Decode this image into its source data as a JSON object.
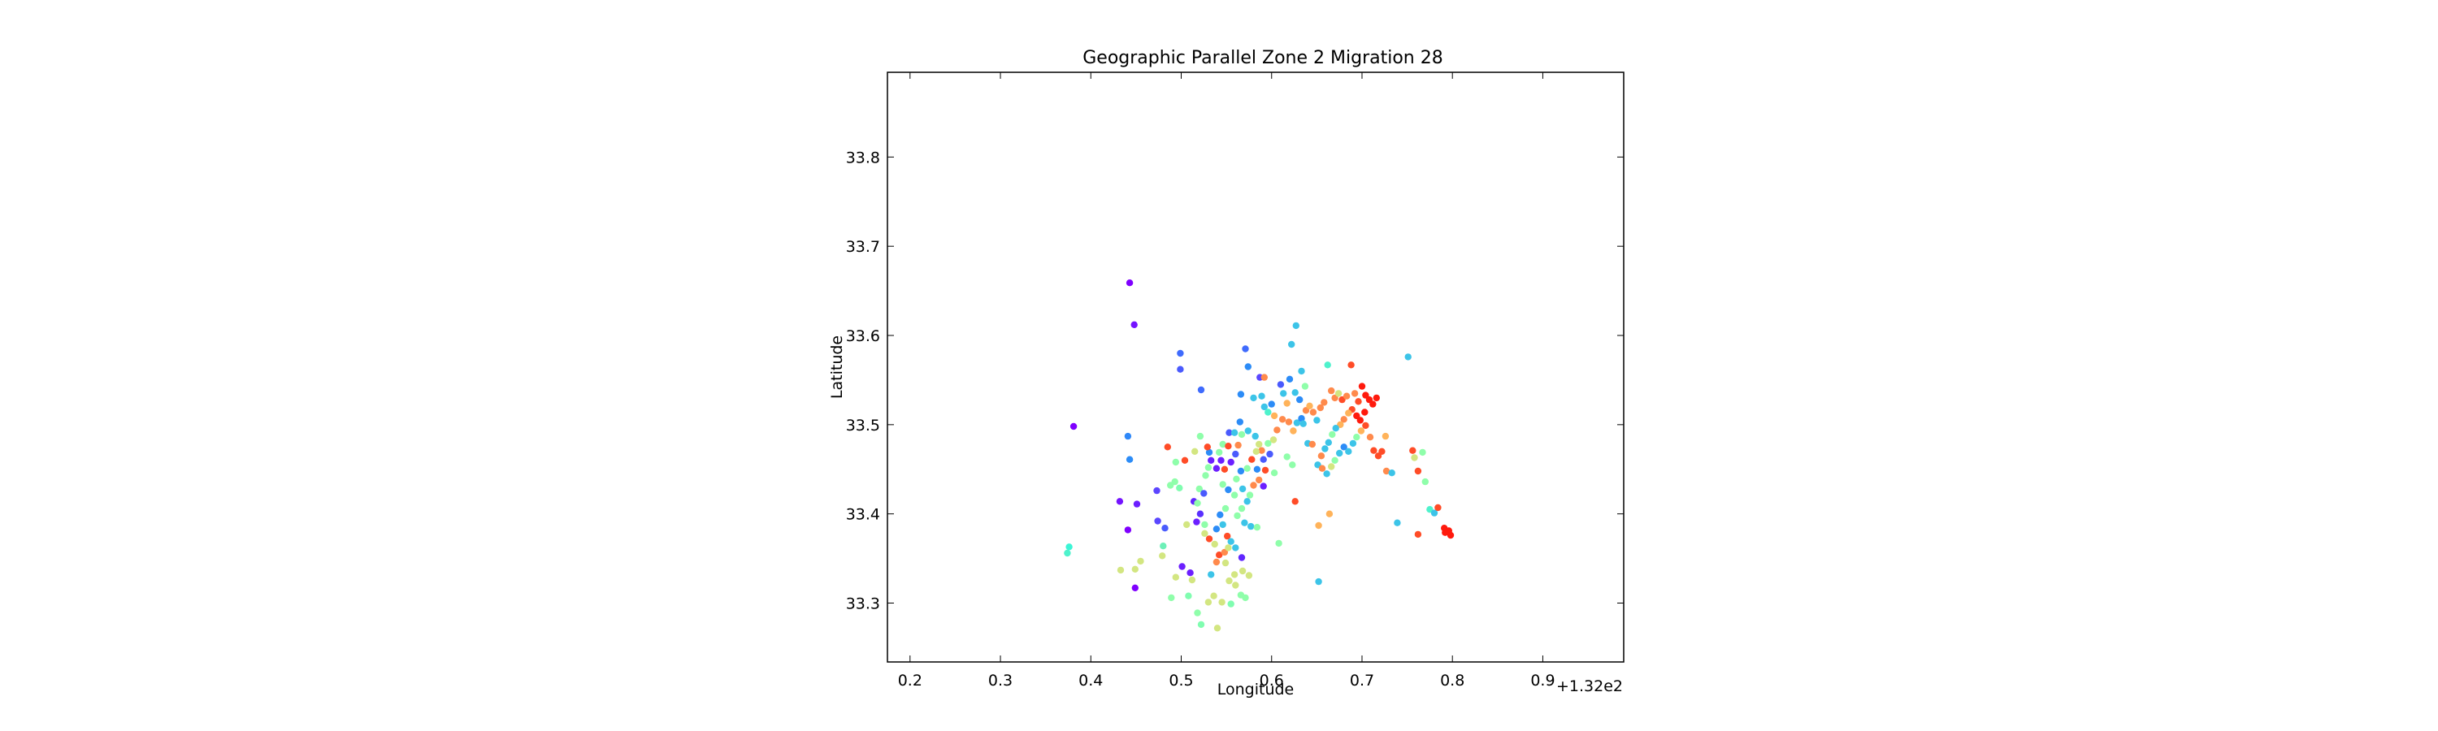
{
  "chart_data": {
    "type": "scatter",
    "title": "Geographic Parallel Zone 2 Migration 28",
    "xlabel": "Longitude",
    "ylabel": "Latitude",
    "x_offset_label": "+1.32e2",
    "xlim": [
      132.175,
      132.9895
    ],
    "ylim": [
      33.234,
      33.895
    ],
    "xticks": [
      132.2,
      132.3,
      132.4,
      132.5,
      132.6,
      132.7,
      132.8,
      132.9
    ],
    "xtick_labels": [
      "0.2",
      "0.3",
      "0.4",
      "0.5",
      "0.6",
      "0.7",
      "0.8",
      "0.9"
    ],
    "yticks": [
      33.3,
      33.4,
      33.5,
      33.6,
      33.7,
      33.8
    ],
    "ytick_labels": [
      "33.3",
      "33.4",
      "33.5",
      "33.6",
      "33.7",
      "33.8"
    ],
    "grid": false,
    "legend": "none",
    "colormap": "rainbow",
    "points": [
      {
        "x": 132.443,
        "y": 33.659,
        "c": "#7f00ff"
      },
      {
        "x": 132.448,
        "y": 33.612,
        "c": "#7413ff"
      },
      {
        "x": 132.381,
        "y": 33.498,
        "c": "#7f00ff"
      },
      {
        "x": 132.432,
        "y": 33.414,
        "c": "#7413ff"
      },
      {
        "x": 132.441,
        "y": 33.382,
        "c": "#7f00ff"
      },
      {
        "x": 132.449,
        "y": 33.317,
        "c": "#7f00ff"
      },
      {
        "x": 132.451,
        "y": 33.411,
        "c": "#6c1fff"
      },
      {
        "x": 132.499,
        "y": 33.58,
        "c": "#3f6bfd"
      },
      {
        "x": 132.499,
        "y": 33.562,
        "c": "#4a5afd"
      },
      {
        "x": 132.441,
        "y": 33.487,
        "c": "#2f88f8"
      },
      {
        "x": 132.443,
        "y": 33.461,
        "c": "#2c8cf7"
      },
      {
        "x": 132.376,
        "y": 33.363,
        "c": "#3cf5d6"
      },
      {
        "x": 132.374,
        "y": 33.356,
        "c": "#4ef2cc"
      },
      {
        "x": 132.473,
        "y": 33.426,
        "c": "#5c45ff"
      },
      {
        "x": 132.474,
        "y": 33.392,
        "c": "#5a47ff"
      },
      {
        "x": 132.482,
        "y": 33.384,
        "c": "#4a5cfd"
      },
      {
        "x": 132.488,
        "y": 33.432,
        "c": "#8ffeaa"
      },
      {
        "x": 132.493,
        "y": 33.436,
        "c": "#8ffeaa"
      },
      {
        "x": 132.48,
        "y": 33.364,
        "c": "#6df0b8"
      },
      {
        "x": 132.485,
        "y": 33.475,
        "c": "#ff4c27"
      },
      {
        "x": 132.504,
        "y": 33.46,
        "c": "#ff4c27"
      },
      {
        "x": 132.494,
        "y": 33.458,
        "c": "#8ffeaa"
      },
      {
        "x": 132.498,
        "y": 33.429,
        "c": "#80fdb0"
      },
      {
        "x": 132.489,
        "y": 33.306,
        "c": "#8ffeaa"
      },
      {
        "x": 132.433,
        "y": 33.337,
        "c": "#d3e681"
      },
      {
        "x": 132.455,
        "y": 33.347,
        "c": "#d3e681"
      },
      {
        "x": 132.449,
        "y": 33.338,
        "c": "#d3e681"
      },
      {
        "x": 132.479,
        "y": 33.353,
        "c": "#d3e681"
      },
      {
        "x": 132.494,
        "y": 33.329,
        "c": "#d3e681"
      },
      {
        "x": 132.512,
        "y": 33.326,
        "c": "#d3e681"
      },
      {
        "x": 132.514,
        "y": 33.414,
        "c": "#6026ff"
      },
      {
        "x": 132.521,
        "y": 33.4,
        "c": "#5a30ff"
      },
      {
        "x": 132.522,
        "y": 33.539,
        "c": "#3f6bfd"
      },
      {
        "x": 132.52,
        "y": 33.428,
        "c": "#8ffeaa"
      },
      {
        "x": 132.518,
        "y": 33.412,
        "c": "#8ffeaa"
      },
      {
        "x": 132.517,
        "y": 33.391,
        "c": "#6c1fff"
      },
      {
        "x": 132.526,
        "y": 33.388,
        "c": "#8ffeaa"
      },
      {
        "x": 132.525,
        "y": 33.423,
        "c": "#4a5afd"
      },
      {
        "x": 132.533,
        "y": 33.46,
        "c": "#6c1fff"
      },
      {
        "x": 132.527,
        "y": 33.443,
        "c": "#8ffeaa"
      },
      {
        "x": 132.531,
        "y": 33.469,
        "c": "#2c8cf7"
      },
      {
        "x": 132.529,
        "y": 33.475,
        "c": "#ff4c27"
      },
      {
        "x": 132.521,
        "y": 33.487,
        "c": "#8ffeaa"
      },
      {
        "x": 132.515,
        "y": 33.47,
        "c": "#d3e681"
      },
      {
        "x": 132.506,
        "y": 33.388,
        "c": "#d3e681"
      },
      {
        "x": 132.508,
        "y": 33.308,
        "c": "#80fdb0"
      },
      {
        "x": 132.518,
        "y": 33.289,
        "c": "#8ffeaa"
      },
      {
        "x": 132.522,
        "y": 33.276,
        "c": "#80fdb0"
      },
      {
        "x": 132.53,
        "y": 33.301,
        "c": "#d3e681"
      },
      {
        "x": 132.536,
        "y": 33.308,
        "c": "#d3e681"
      },
      {
        "x": 132.54,
        "y": 33.272,
        "c": "#d3e681"
      },
      {
        "x": 132.545,
        "y": 33.301,
        "c": "#d3e681"
      },
      {
        "x": 132.555,
        "y": 33.299,
        "c": "#80fdb0"
      },
      {
        "x": 132.566,
        "y": 33.309,
        "c": "#8ffeaa"
      },
      {
        "x": 132.553,
        "y": 33.325,
        "c": "#d3e681"
      },
      {
        "x": 132.559,
        "y": 33.332,
        "c": "#d3e681"
      },
      {
        "x": 132.568,
        "y": 33.336,
        "c": "#d3e681"
      },
      {
        "x": 132.533,
        "y": 33.332,
        "c": "#3cc4e8"
      },
      {
        "x": 132.539,
        "y": 33.346,
        "c": "#ff8a4c"
      },
      {
        "x": 132.542,
        "y": 33.354,
        "c": "#ff4c27"
      },
      {
        "x": 132.548,
        "y": 33.357,
        "c": "#ff8a4c"
      },
      {
        "x": 132.552,
        "y": 33.362,
        "c": "#d3e681"
      },
      {
        "x": 132.537,
        "y": 33.366,
        "c": "#d3e681"
      },
      {
        "x": 132.526,
        "y": 33.378,
        "c": "#d3e681"
      },
      {
        "x": 132.531,
        "y": 33.372,
        "c": "#ff4c27"
      },
      {
        "x": 132.539,
        "y": 33.383,
        "c": "#2c8cf7"
      },
      {
        "x": 132.546,
        "y": 33.388,
        "c": "#3cc4e8"
      },
      {
        "x": 132.551,
        "y": 33.375,
        "c": "#ff4c27"
      },
      {
        "x": 132.555,
        "y": 33.369,
        "c": "#3cc4e8"
      },
      {
        "x": 132.56,
        "y": 33.362,
        "c": "#3cc4e8"
      },
      {
        "x": 132.567,
        "y": 33.351,
        "c": "#6026ff"
      },
      {
        "x": 132.562,
        "y": 33.398,
        "c": "#8ffeaa"
      },
      {
        "x": 132.567,
        "y": 33.406,
        "c": "#8ffeaa"
      },
      {
        "x": 132.57,
        "y": 33.39,
        "c": "#3cc4e8"
      },
      {
        "x": 132.577,
        "y": 33.386,
        "c": "#3cc4e8"
      },
      {
        "x": 132.584,
        "y": 33.385,
        "c": "#8ffeaa"
      },
      {
        "x": 132.576,
        "y": 33.421,
        "c": "#8ffeaa"
      },
      {
        "x": 132.58,
        "y": 33.432,
        "c": "#ff8a4c"
      },
      {
        "x": 132.586,
        "y": 33.438,
        "c": "#ff8a4c"
      },
      {
        "x": 132.591,
        "y": 33.431,
        "c": "#6c1fff"
      },
      {
        "x": 132.584,
        "y": 33.45,
        "c": "#2c8cf7"
      },
      {
        "x": 132.593,
        "y": 33.449,
        "c": "#ff4c27"
      },
      {
        "x": 132.591,
        "y": 33.461,
        "c": "#4a5afd"
      },
      {
        "x": 132.598,
        "y": 33.467,
        "c": "#4a5afd"
      },
      {
        "x": 132.589,
        "y": 33.471,
        "c": "#ff8a4c"
      },
      {
        "x": 132.586,
        "y": 33.478,
        "c": "#d3e681"
      },
      {
        "x": 132.582,
        "y": 33.487,
        "c": "#3cc4e8"
      },
      {
        "x": 132.574,
        "y": 33.493,
        "c": "#3cc4e8"
      },
      {
        "x": 132.567,
        "y": 33.489,
        "c": "#8ffeaa"
      },
      {
        "x": 132.563,
        "y": 33.477,
        "c": "#ff8a4c"
      },
      {
        "x": 132.56,
        "y": 33.467,
        "c": "#4a5afd"
      },
      {
        "x": 132.555,
        "y": 33.458,
        "c": "#6c1fff"
      },
      {
        "x": 132.548,
        "y": 33.45,
        "c": "#ff4c27"
      },
      {
        "x": 132.553,
        "y": 33.491,
        "c": "#4a5afd"
      },
      {
        "x": 132.546,
        "y": 33.478,
        "c": "#8ffeaa"
      },
      {
        "x": 132.542,
        "y": 33.469,
        "c": "#8ffeaa"
      },
      {
        "x": 132.539,
        "y": 33.451,
        "c": "#6c1fff"
      },
      {
        "x": 132.546,
        "y": 33.433,
        "c": "#8ffeaa"
      },
      {
        "x": 132.552,
        "y": 33.427,
        "c": "#2c8cf7"
      },
      {
        "x": 132.559,
        "y": 33.421,
        "c": "#8ffeaa"
      },
      {
        "x": 132.566,
        "y": 33.448,
        "c": "#2c8cf7"
      },
      {
        "x": 132.573,
        "y": 33.451,
        "c": "#8ffeaa"
      },
      {
        "x": 132.578,
        "y": 33.461,
        "c": "#ff4c27"
      },
      {
        "x": 132.566,
        "y": 33.534,
        "c": "#2c8cf7"
      },
      {
        "x": 132.571,
        "y": 33.585,
        "c": "#3f6bfd"
      },
      {
        "x": 132.574,
        "y": 33.565,
        "c": "#2c8cf7"
      },
      {
        "x": 132.58,
        "y": 33.53,
        "c": "#3cc4e8"
      },
      {
        "x": 132.587,
        "y": 33.553,
        "c": "#5a47ff"
      },
      {
        "x": 132.592,
        "y": 33.553,
        "c": "#ff8a4c"
      },
      {
        "x": 132.589,
        "y": 33.532,
        "c": "#3cc4e8"
      },
      {
        "x": 132.592,
        "y": 33.52,
        "c": "#3cc4e8"
      },
      {
        "x": 132.596,
        "y": 33.514,
        "c": "#4ef2cc"
      },
      {
        "x": 132.6,
        "y": 33.523,
        "c": "#2c8cf7"
      },
      {
        "x": 132.603,
        "y": 33.51,
        "c": "#ffb35a"
      },
      {
        "x": 132.606,
        "y": 33.494,
        "c": "#ff8a4c"
      },
      {
        "x": 132.602,
        "y": 33.483,
        "c": "#d3e681"
      },
      {
        "x": 132.596,
        "y": 33.479,
        "c": "#8ffeaa"
      },
      {
        "x": 132.61,
        "y": 33.545,
        "c": "#4a5afd"
      },
      {
        "x": 132.613,
        "y": 33.535,
        "c": "#3cc4e8"
      },
      {
        "x": 132.617,
        "y": 33.524,
        "c": "#ffb35a"
      },
      {
        "x": 132.62,
        "y": 33.551,
        "c": "#2c8cf7"
      },
      {
        "x": 132.622,
        "y": 33.59,
        "c": "#3cc4e8"
      },
      {
        "x": 132.627,
        "y": 33.611,
        "c": "#3cc4e8"
      },
      {
        "x": 132.626,
        "y": 33.536,
        "c": "#3cc4e8"
      },
      {
        "x": 132.631,
        "y": 33.528,
        "c": "#2c8cf7"
      },
      {
        "x": 132.633,
        "y": 33.56,
        "c": "#3cc4e8"
      },
      {
        "x": 132.637,
        "y": 33.543,
        "c": "#8ffeaa"
      },
      {
        "x": 132.612,
        "y": 33.506,
        "c": "#ff8a4c"
      },
      {
        "x": 132.619,
        "y": 33.503,
        "c": "#ff8a4c"
      },
      {
        "x": 132.624,
        "y": 33.493,
        "c": "#ffb35a"
      },
      {
        "x": 132.628,
        "y": 33.502,
        "c": "#3cc4e8"
      },
      {
        "x": 132.633,
        "y": 33.507,
        "c": "#2c8cf7"
      },
      {
        "x": 132.638,
        "y": 33.516,
        "c": "#ff8a4c"
      },
      {
        "x": 132.642,
        "y": 33.521,
        "c": "#ffb35a"
      },
      {
        "x": 132.646,
        "y": 33.514,
        "c": "#ff8a4c"
      },
      {
        "x": 132.65,
        "y": 33.505,
        "c": "#3cc4e8"
      },
      {
        "x": 132.654,
        "y": 33.519,
        "c": "#ff8a4c"
      },
      {
        "x": 132.658,
        "y": 33.525,
        "c": "#ff8a4c"
      },
      {
        "x": 132.662,
        "y": 33.567,
        "c": "#4ef2cc"
      },
      {
        "x": 132.666,
        "y": 33.538,
        "c": "#ff8a4c"
      },
      {
        "x": 132.67,
        "y": 33.53,
        "c": "#ff8a4c"
      },
      {
        "x": 132.674,
        "y": 33.535,
        "c": "#d3e681"
      },
      {
        "x": 132.678,
        "y": 33.528,
        "c": "#ff4c27"
      },
      {
        "x": 132.683,
        "y": 33.532,
        "c": "#ff8a4c"
      },
      {
        "x": 132.688,
        "y": 33.567,
        "c": "#ff4c27"
      },
      {
        "x": 132.692,
        "y": 33.535,
        "c": "#ff8a4c"
      },
      {
        "x": 132.696,
        "y": 33.526,
        "c": "#ff4c27"
      },
      {
        "x": 132.7,
        "y": 33.543,
        "c": "#ff1a0d"
      },
      {
        "x": 132.704,
        "y": 33.533,
        "c": "#ff1a0d"
      },
      {
        "x": 132.708,
        "y": 33.528,
        "c": "#ff1a0d"
      },
      {
        "x": 132.712,
        "y": 33.523,
        "c": "#ff1a0d"
      },
      {
        "x": 132.716,
        "y": 33.53,
        "c": "#ff1a0d"
      },
      {
        "x": 132.703,
        "y": 33.514,
        "c": "#ff1a0d"
      },
      {
        "x": 132.698,
        "y": 33.505,
        "c": "#ff1a0d"
      },
      {
        "x": 132.694,
        "y": 33.51,
        "c": "#ff1a0d"
      },
      {
        "x": 132.689,
        "y": 33.517,
        "c": "#ff4c27"
      },
      {
        "x": 132.685,
        "y": 33.513,
        "c": "#ffb35a"
      },
      {
        "x": 132.68,
        "y": 33.506,
        "c": "#ff8a4c"
      },
      {
        "x": 132.676,
        "y": 33.5,
        "c": "#ffb35a"
      },
      {
        "x": 132.671,
        "y": 33.496,
        "c": "#3cc4e8"
      },
      {
        "x": 132.667,
        "y": 33.489,
        "c": "#8ffeaa"
      },
      {
        "x": 132.663,
        "y": 33.48,
        "c": "#3cc4e8"
      },
      {
        "x": 132.659,
        "y": 33.473,
        "c": "#3cc4e8"
      },
      {
        "x": 132.655,
        "y": 33.465,
        "c": "#ff8a4c"
      },
      {
        "x": 132.651,
        "y": 33.455,
        "c": "#3cc4e8"
      },
      {
        "x": 132.656,
        "y": 33.451,
        "c": "#ff8a4c"
      },
      {
        "x": 132.661,
        "y": 33.445,
        "c": "#3cc4e8"
      },
      {
        "x": 132.666,
        "y": 33.453,
        "c": "#d3e681"
      },
      {
        "x": 132.67,
        "y": 33.46,
        "c": "#8ffeaa"
      },
      {
        "x": 132.675,
        "y": 33.468,
        "c": "#3cc4e8"
      },
      {
        "x": 132.68,
        "y": 33.475,
        "c": "#2c8cf7"
      },
      {
        "x": 132.685,
        "y": 33.47,
        "c": "#3cc4e8"
      },
      {
        "x": 132.69,
        "y": 33.479,
        "c": "#3cc4e8"
      },
      {
        "x": 132.694,
        "y": 33.486,
        "c": "#8ffeaa"
      },
      {
        "x": 132.699,
        "y": 33.493,
        "c": "#ffb35a"
      },
      {
        "x": 132.704,
        "y": 33.499,
        "c": "#ff4c27"
      },
      {
        "x": 132.709,
        "y": 33.486,
        "c": "#ff8a4c"
      },
      {
        "x": 132.713,
        "y": 33.471,
        "c": "#ff4c27"
      },
      {
        "x": 132.718,
        "y": 33.465,
        "c": "#ff4c27"
      },
      {
        "x": 132.722,
        "y": 33.47,
        "c": "#ff4c27"
      },
      {
        "x": 132.727,
        "y": 33.448,
        "c": "#ff8a4c"
      },
      {
        "x": 132.733,
        "y": 33.446,
        "c": "#3cc4e8"
      },
      {
        "x": 132.726,
        "y": 33.487,
        "c": "#ffb35a"
      },
      {
        "x": 132.739,
        "y": 33.39,
        "c": "#3cc4e8"
      },
      {
        "x": 132.751,
        "y": 33.576,
        "c": "#3cc4e8"
      },
      {
        "x": 132.756,
        "y": 33.471,
        "c": "#ff4c27"
      },
      {
        "x": 132.758,
        "y": 33.463,
        "c": "#d3e681"
      },
      {
        "x": 132.762,
        "y": 33.448,
        "c": "#ff4c27"
      },
      {
        "x": 132.767,
        "y": 33.469,
        "c": "#8ffeaa"
      },
      {
        "x": 132.77,
        "y": 33.436,
        "c": "#8ffeaa"
      },
      {
        "x": 132.775,
        "y": 33.405,
        "c": "#4ef2cc"
      },
      {
        "x": 132.78,
        "y": 33.401,
        "c": "#3cc4e8"
      },
      {
        "x": 132.784,
        "y": 33.407,
        "c": "#ff4c27"
      },
      {
        "x": 132.791,
        "y": 33.384,
        "c": "#ff1a0d"
      },
      {
        "x": 132.796,
        "y": 33.381,
        "c": "#ff1a0d"
      },
      {
        "x": 132.798,
        "y": 33.376,
        "c": "#ff1a0d"
      },
      {
        "x": 132.792,
        "y": 33.379,
        "c": "#ff1a0d"
      },
      {
        "x": 132.762,
        "y": 33.377,
        "c": "#ff4c27"
      },
      {
        "x": 132.608,
        "y": 33.367,
        "c": "#8ffeaa"
      },
      {
        "x": 132.652,
        "y": 33.324,
        "c": "#3cc4e8"
      },
      {
        "x": 132.626,
        "y": 33.414,
        "c": "#ff4c27"
      },
      {
        "x": 132.664,
        "y": 33.4,
        "c": "#ffb35a"
      },
      {
        "x": 132.652,
        "y": 33.387,
        "c": "#ffb35a"
      },
      {
        "x": 132.603,
        "y": 33.446,
        "c": "#8ffeaa"
      },
      {
        "x": 132.617,
        "y": 33.464,
        "c": "#8ffeaa"
      },
      {
        "x": 132.623,
        "y": 33.455,
        "c": "#8ffeaa"
      },
      {
        "x": 132.64,
        "y": 33.479,
        "c": "#3cc4e8"
      },
      {
        "x": 132.645,
        "y": 33.478,
        "c": "#ff8a4c"
      },
      {
        "x": 132.635,
        "y": 33.501,
        "c": "#3cc4e8"
      },
      {
        "x": 132.583,
        "y": 33.47,
        "c": "#d3e681"
      },
      {
        "x": 132.559,
        "y": 33.491,
        "c": "#3cc4e8"
      },
      {
        "x": 132.565,
        "y": 33.503,
        "c": "#2c8cf7"
      },
      {
        "x": 132.552,
        "y": 33.476,
        "c": "#ff4c27"
      },
      {
        "x": 132.544,
        "y": 33.46,
        "c": "#6c1fff"
      },
      {
        "x": 132.53,
        "y": 33.452,
        "c": "#8ffeaa"
      },
      {
        "x": 132.561,
        "y": 33.439,
        "c": "#8ffeaa"
      },
      {
        "x": 132.568,
        "y": 33.428,
        "c": "#3cc4e8"
      },
      {
        "x": 132.573,
        "y": 33.414,
        "c": "#3cc4e8"
      },
      {
        "x": 132.543,
        "y": 33.399,
        "c": "#2c8cf7"
      },
      {
        "x": 132.549,
        "y": 33.406,
        "c": "#8ffeaa"
      },
      {
        "x": 132.501,
        "y": 33.341,
        "c": "#6c1fff"
      },
      {
        "x": 132.51,
        "y": 33.334,
        "c": "#6c1fff"
      },
      {
        "x": 132.56,
        "y": 33.32,
        "c": "#d3e681"
      },
      {
        "x": 132.575,
        "y": 33.331,
        "c": "#d3e681"
      },
      {
        "x": 132.571,
        "y": 33.306,
        "c": "#8ffeaa"
      },
      {
        "x": 132.549,
        "y": 33.345,
        "c": "#d3e681"
      }
    ]
  }
}
